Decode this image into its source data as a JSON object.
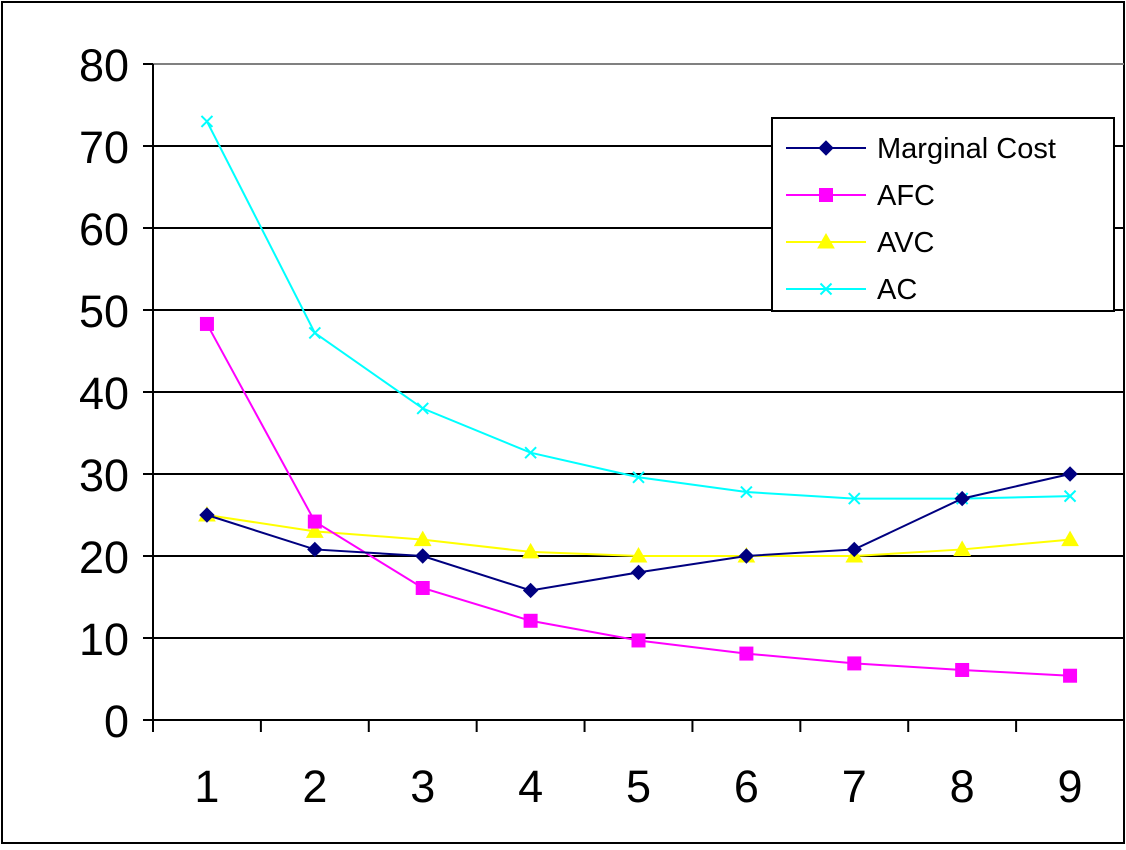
{
  "chart_data": {
    "type": "line",
    "title": "",
    "xlabel": "",
    "ylabel": "",
    "categories": [
      "1",
      "2",
      "3",
      "4",
      "5",
      "6",
      "7",
      "8",
      "9"
    ],
    "ylim": [
      0,
      80
    ],
    "yticks": [
      "0",
      "10",
      "20",
      "30",
      "40",
      "50",
      "60",
      "70",
      "80"
    ],
    "grid": true,
    "legend_position": "top-right",
    "series": [
      {
        "name": "Marginal Cost",
        "color": "#000080",
        "marker": "diamond",
        "values": [
          25,
          20.8,
          20,
          15.8,
          18,
          20,
          20.8,
          27,
          30
        ]
      },
      {
        "name": "AFC",
        "color": "#ff00ff",
        "marker": "square",
        "values": [
          48.3,
          24.2,
          16.1,
          12.1,
          9.7,
          8.1,
          6.9,
          6.1,
          5.4
        ]
      },
      {
        "name": "AVC",
        "color": "#ffff00",
        "marker": "triangle",
        "values": [
          25,
          23,
          22,
          20.5,
          20,
          20,
          20,
          20.8,
          22
        ]
      },
      {
        "name": "AC",
        "color": "#00ffff",
        "marker": "x",
        "values": [
          73,
          47.2,
          38,
          32.6,
          29.6,
          27.8,
          27,
          27,
          27.3
        ]
      }
    ]
  }
}
